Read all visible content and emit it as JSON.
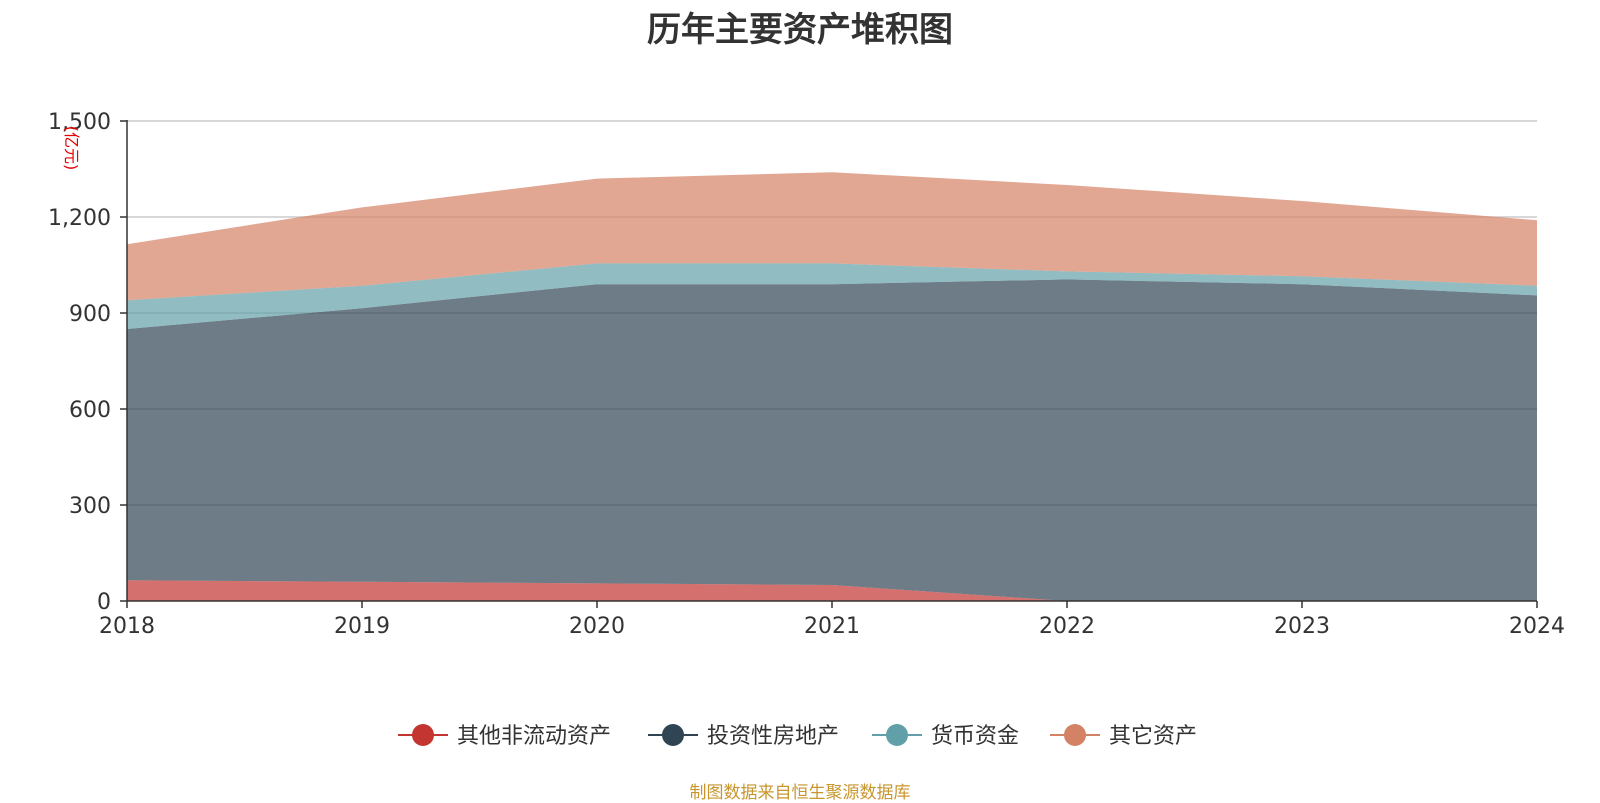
{
  "chart_data": {
    "type": "area",
    "stacked": true,
    "title": "历年主要资产堆积图",
    "unit_label": "(亿元)",
    "x": [
      "2018",
      "2019",
      "2020",
      "2021",
      "2022",
      "2023",
      "2024"
    ],
    "ylim": [
      0,
      1500
    ],
    "yticks": [
      0,
      300,
      600,
      900,
      1200,
      1500
    ],
    "ytick_labels": [
      "0",
      "300",
      "600",
      "900",
      "1,200",
      "1,500"
    ],
    "grid": true,
    "legend_position": "bottom",
    "series": [
      {
        "name": "其他非流动资产",
        "color": "#c23531",
        "values": [
          65,
          60,
          55,
          50,
          0,
          0,
          0
        ]
      },
      {
        "name": "投资性房地产",
        "color": "#2f4554",
        "values": [
          785,
          855,
          935,
          940,
          1005,
          990,
          955
        ]
      },
      {
        "name": "货币资金",
        "color": "#61a0a8",
        "values": [
          90,
          70,
          65,
          65,
          25,
          25,
          30
        ]
      },
      {
        "name": "其它资产",
        "color": "#d48265",
        "values": [
          175,
          245,
          265,
          285,
          270,
          235,
          205
        ]
      }
    ]
  },
  "source_note": "制图数据来自恒生聚源数据库"
}
